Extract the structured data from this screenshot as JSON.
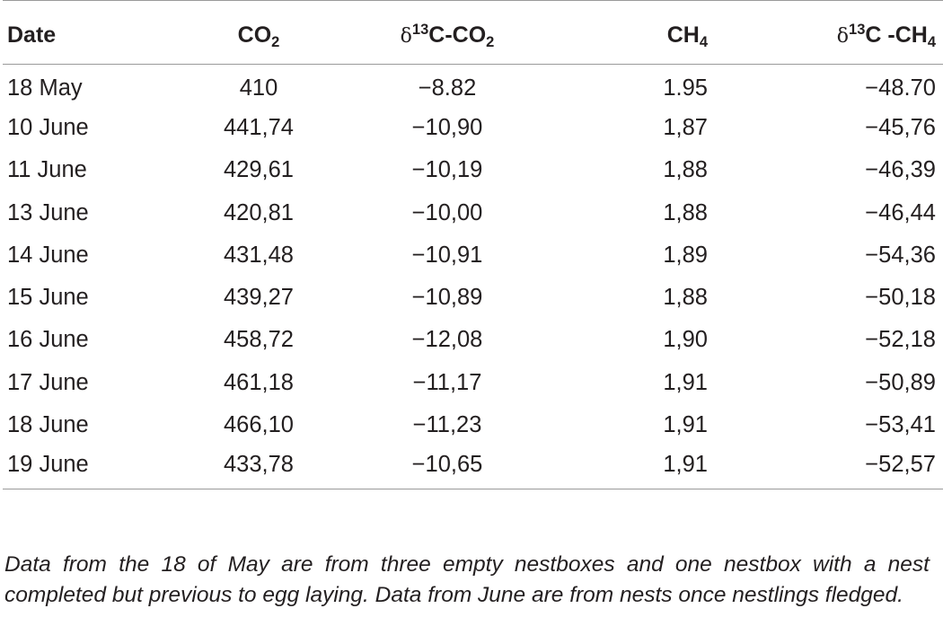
{
  "table": {
    "headers": {
      "date": "Date",
      "co2_base": "CO",
      "co2_sub": "2",
      "dco2_delta": "δ",
      "dco2_sup": "13",
      "dco2_base": "C-CO",
      "dco2_sub": "2",
      "ch4_base": "CH",
      "ch4_sub": "4",
      "dch4_delta": "δ",
      "dch4_sup": "13",
      "dch4_base": "C -CH",
      "dch4_sub": "4"
    },
    "rows": [
      {
        "date": "18 May",
        "co2": "410",
        "d13c_co2": "−8.82",
        "ch4": "1.95",
        "d13c_ch4": "−48.70"
      },
      {
        "date": "10 June",
        "co2": "441,74",
        "d13c_co2": "−10,90",
        "ch4": "1,87",
        "d13c_ch4": "−45,76"
      },
      {
        "date": "11 June",
        "co2": "429,61",
        "d13c_co2": "−10,19",
        "ch4": "1,88",
        "d13c_ch4": "−46,39"
      },
      {
        "date": "13 June",
        "co2": "420,81",
        "d13c_co2": "−10,00",
        "ch4": "1,88",
        "d13c_ch4": "−46,44"
      },
      {
        "date": "14 June",
        "co2": "431,48",
        "d13c_co2": "−10,91",
        "ch4": "1,89",
        "d13c_ch4": "−54,36"
      },
      {
        "date": "15 June",
        "co2": "439,27",
        "d13c_co2": "−10,89",
        "ch4": "1,88",
        "d13c_ch4": "−50,18"
      },
      {
        "date": "16 June",
        "co2": "458,72",
        "d13c_co2": "−12,08",
        "ch4": "1,90",
        "d13c_ch4": "−52,18"
      },
      {
        "date": "17 June",
        "co2": "461,18",
        "d13c_co2": "−11,17",
        "ch4": "1,91",
        "d13c_ch4": "−50,89"
      },
      {
        "date": "18 June",
        "co2": "466,10",
        "d13c_co2": "−11,23",
        "ch4": "1,91",
        "d13c_ch4": "−53,41"
      },
      {
        "date": "19 June",
        "co2": "433,78",
        "d13c_co2": "−10,65",
        "ch4": "1,91",
        "d13c_ch4": "−52,57"
      }
    ]
  },
  "footnote": "Data from the 18 of May are from three empty nestboxes and one nestbox with a nest completed but previous to egg laying. Data from June are from nests once nestlings fledged."
}
